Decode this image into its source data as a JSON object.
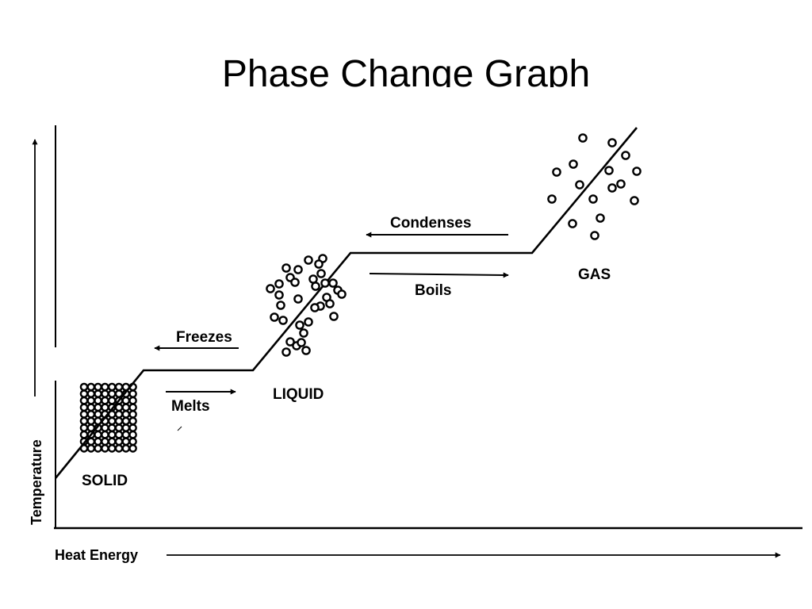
{
  "slide": {
    "title": "Phase Change Graph"
  },
  "axes": {
    "x_label": "Heat Energy",
    "y_label": "Temperature"
  },
  "phases": {
    "solid": "SOLID",
    "liquid": "LIQUID",
    "gas": "GAS"
  },
  "transitions": {
    "melts": "Melts",
    "freezes": "Freezes",
    "boils": "Boils",
    "condenses": "Condenses"
  },
  "colors": {
    "ink": "#000000",
    "background": "#ffffff"
  }
}
